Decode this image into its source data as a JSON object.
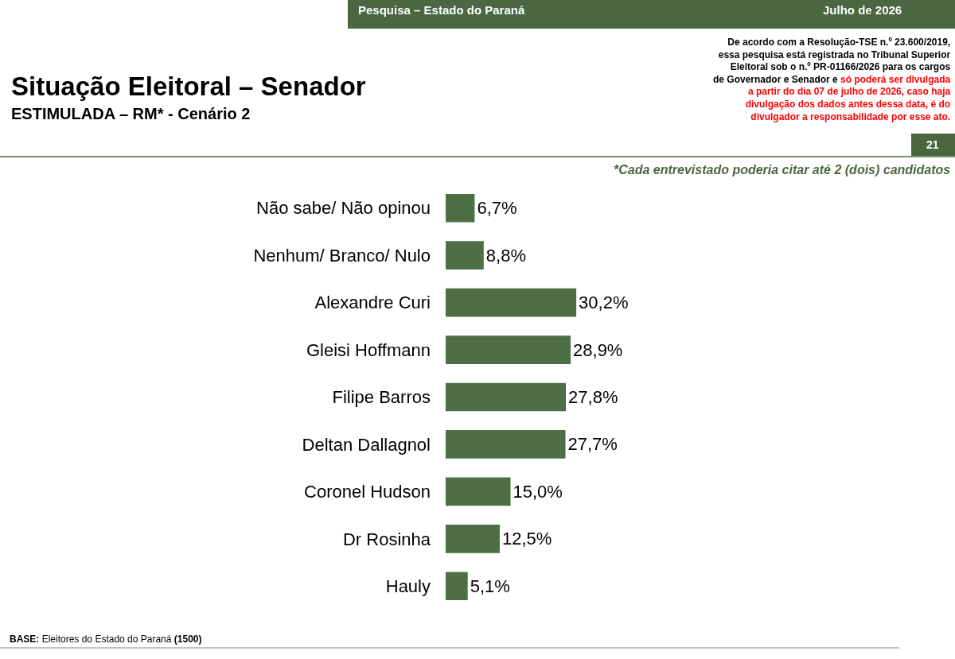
{
  "chart_data": {
    "type": "bar",
    "orientation": "horizontal",
    "title": "Situação Eleitoral – Senador",
    "subtitle": "ESTIMULADA – RM* - Cenário 2",
    "categories": [
      "Não sabe/ Não opinou",
      "Nenhum/ Branco/ Nulo",
      "Alexandre Curi",
      "Gleisi Hoffmann",
      "Filipe Barros",
      "Deltan Dallagnol",
      "Coronel Hudson",
      "Dr Rosinha",
      "Hauly"
    ],
    "values": [
      6.7,
      8.8,
      30.2,
      28.9,
      27.8,
      27.7,
      15.0,
      12.5,
      5.1
    ],
    "value_labels": [
      "6,7%",
      "8,8%",
      "30,2%",
      "28,9%",
      "27,8%",
      "27,7%",
      "15,0%",
      "12,5%",
      "5,1%"
    ],
    "color": "#4e6e46",
    "annotations": [
      "Pesquisa – Estado do Paraná",
      "Julho de 2026",
      "De acordo com a Resolução-TSE n.º 23.600/2019, essa pesquisa está registrada no Tribunal Superior Eleitoral sob o n.º PR-01166/2026 para os cargos de Governador e Senador e",
      "só poderá ser divulgada a partir do dia 07 de julho de 2026, caso haja divulgação dos dados antes dessa data, é do divulgador a responsabilidade por esse ato.",
      "21",
      "*Cada entrevistado poderia citar até 2 (dois) candidatos",
      "BASE: Eleitores do Estado do Paraná (1500)"
    ],
    "legend": false
  }
}
